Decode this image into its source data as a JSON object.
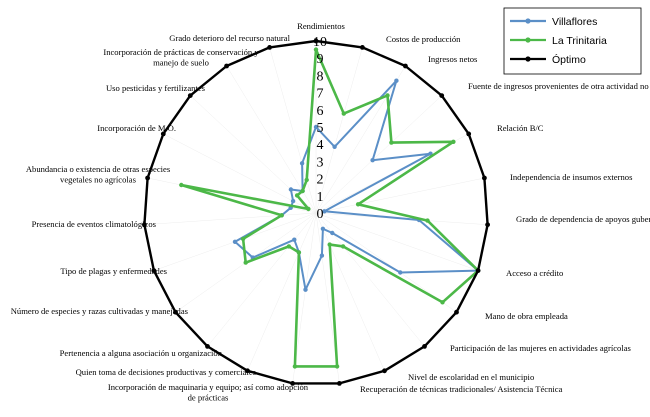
{
  "chart_data": {
    "type": "radar",
    "title": "",
    "axes": [
      "Rendimientos",
      "Costos de producción",
      "Ingresos netos",
      "Fuente de ingresos provenientes de otra actividad no agrícola",
      "Relación B/C",
      "Independencia de insumos externos",
      "Grado de dependencia de apoyos gubernamentales",
      "Acceso a crédito",
      "Mano de obra empleada",
      "Participación de las mujeres en actividades agrícolas",
      "Nivel de escolaridad en el municipio",
      "Recuperación de técnicas tradicionales/ Asistencia Técnica",
      "Incorporación de maquinaria y equipo; así como adopción de prácticas",
      "Quien toma de decisiones productivas y comerciales",
      "Pertenencia a alguna asociación u organización",
      "Número de especies y razas cultivadas y manejadas",
      "Tipo de plagas y enfermedades",
      "Presencia de eventos climatológicos",
      "Abundancia o existencia de otras especies vegetales no agrícolas",
      "Incorporación de M.O.",
      "Uso pesticidas y fertilizantes",
      "Incorporación de prácticas de conservación y manejo de suelo",
      "Grado deterioro del recurso natural"
    ],
    "rmin": 0,
    "rmax": 10,
    "ticks": [
      "0",
      "1",
      "2",
      "3",
      "4",
      "5",
      "6",
      "7",
      "8",
      "9",
      "10"
    ],
    "grid": true,
    "legend_position": "top-right",
    "series": [
      {
        "name": "Villaflores",
        "color": "#5b8fc7",
        "values": [
          5,
          4,
          9,
          4.5,
          7.5,
          0.5,
          6,
          10,
          6,
          1.5,
          1,
          2.5,
          4.5,
          2.5,
          2,
          4.5,
          5,
          2,
          1.5,
          1.5,
          2,
          1.5,
          3
        ]
      },
      {
        "name": "La Trinitaria",
        "color": "#4cb848",
        "values": [
          9.5,
          6,
          8,
          6,
          9,
          2.5,
          6.5,
          10,
          9,
          2.5,
          2,
          9,
          9,
          2.5,
          2.5,
          5,
          4.5,
          2,
          8,
          0.5,
          1.5,
          1.5,
          2
        ]
      },
      {
        "name": "Óptimo",
        "color": "#000000",
        "values": [
          10,
          10,
          10,
          10,
          10,
          10,
          10,
          10,
          10,
          10,
          10,
          10,
          10,
          10,
          10,
          10,
          10,
          10,
          10,
          10,
          10,
          10,
          10
        ]
      }
    ]
  }
}
